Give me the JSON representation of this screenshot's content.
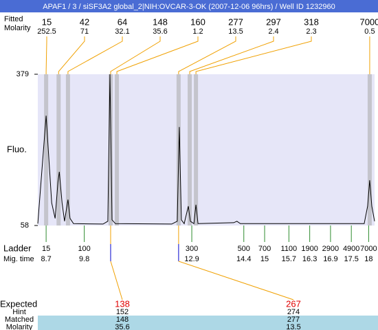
{
  "chart_data": {
    "type": "line",
    "title": "APAF1 / 3 / siSF3A2 global_2|NIH:OVCAR-3-OK (2007-12-06 96hrs) / Well ID 1232960",
    "y_label": "Fluo.",
    "ylim": [
      58,
      379
    ],
    "yticks": [
      58,
      379
    ],
    "xlim": [
      8.46,
      18.17
    ],
    "x": [
      8.46,
      8.7,
      8.86,
      8.96,
      9.04,
      9.08,
      9.16,
      9.23,
      9.33,
      9.39,
      9.49,
      10.34,
      10.48,
      10.54,
      10.6,
      10.7,
      12.32,
      12.48,
      12.54,
      12.6,
      12.68,
      12.8,
      12.86,
      12.96,
      13.02,
      13.08,
      14.11,
      14.2,
      14.3,
      17.87,
      17.97,
      18.03,
      18.09,
      18.17
    ],
    "values": [
      62,
      291,
      106,
      73,
      150,
      172,
      106,
      67,
      113,
      73,
      62,
      61,
      67,
      379,
      70,
      62,
      61,
      67,
      267,
      70,
      62,
      99,
      67,
      62,
      102,
      62,
      64,
      67,
      62,
      62,
      99,
      154,
      99,
      67
    ],
    "color": "#000000",
    "peaks": {
      "size_label": "Fitted",
      "molarity_label": "Molarity",
      "size": [
        15,
        42,
        64,
        148,
        160,
        277,
        297,
        318,
        7000
      ],
      "molarity": [
        252.5,
        71,
        32.1,
        35.6,
        1.2,
        13.5,
        2.4,
        2.3,
        0.5
      ],
      "x": [
        8.7,
        9.06,
        9.33,
        10.56,
        10.74,
        12.52,
        12.84,
        13.02,
        18.03
      ]
    },
    "ladder": {
      "label": "Ladder",
      "time_label": "Mig. time",
      "sizes": [
        15,
        100,
        300,
        500,
        700,
        1100,
        1900,
        2900,
        4900,
        7000
      ],
      "times": [
        8.7,
        9.8,
        12.9,
        14.4,
        15,
        15.7,
        16.3,
        16.9,
        17.5,
        18
      ]
    },
    "expected": {
      "labels": [
        "Expected",
        "Hint",
        "Matched",
        "Molarity"
      ],
      "expected": [
        138,
        267
      ],
      "hint": [
        152,
        274
      ],
      "matched": [
        148,
        277
      ],
      "molarity": [
        35.6,
        13.5
      ]
    }
  }
}
